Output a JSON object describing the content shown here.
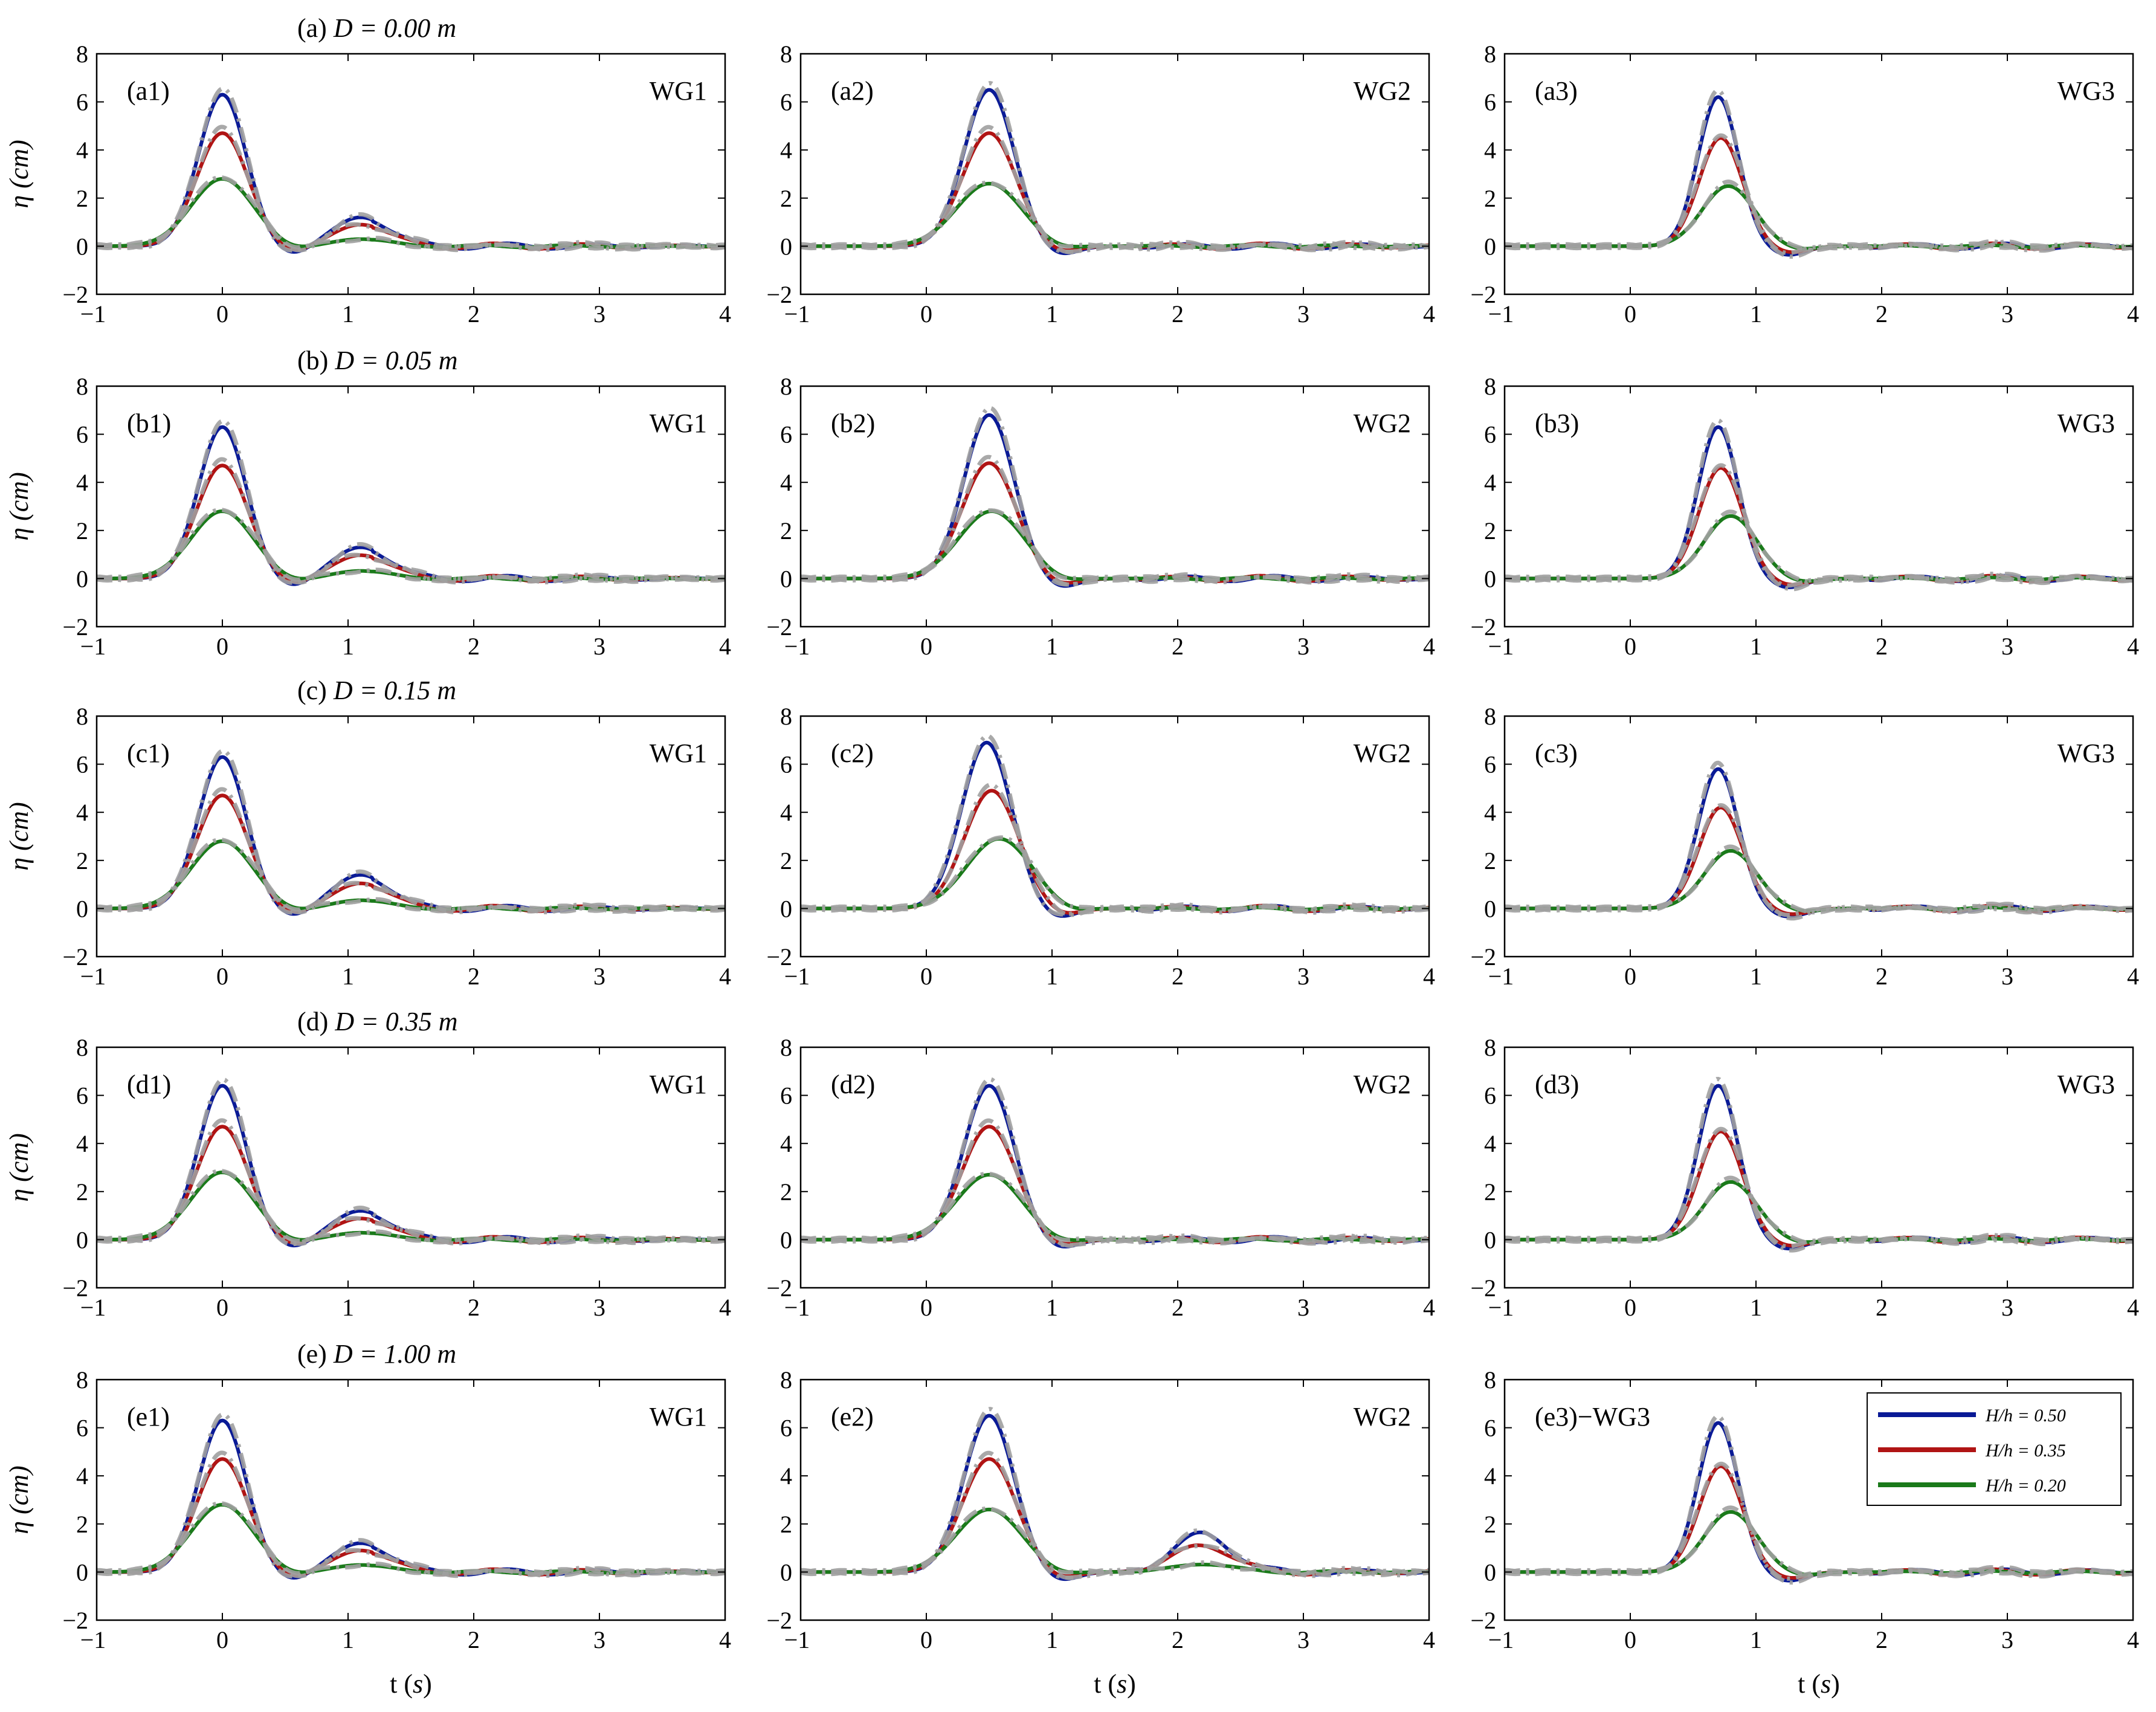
{
  "figure": {
    "gauge_labels": [
      "WG1",
      "WG2",
      "WG3"
    ],
    "xlabel_prefix": "t (",
    "xlabel_unit": "s",
    "xlabel_suffix": ")",
    "ylabel_symbol": "η",
    "ylabel_unit": "(cm)",
    "row_titles": [
      {
        "prefix": "(a)",
        "eq": "D = 0.00",
        "unit": "m"
      },
      {
        "prefix": "(b)",
        "eq": "D = 0.05",
        "unit": "m"
      },
      {
        "prefix": "(c)",
        "eq": "D = 0.15",
        "unit": "m"
      },
      {
        "prefix": "(d)",
        "eq": "D = 0.35",
        "unit": "m"
      },
      {
        "prefix": "(e)",
        "eq": "D = 1.00",
        "unit": "m"
      }
    ],
    "legend": [
      {
        "label": "H/h = 0.50",
        "color": "#0a1a96"
      },
      {
        "label": "H/h = 0.35",
        "color": "#b01414"
      },
      {
        "label": "H/h = 0.20",
        "color": "#1a7a1a"
      }
    ],
    "comparison_color": "#a0a0a0"
  },
  "chart_data": [
    {
      "type": "line",
      "id": "a1",
      "panel_label": "(a1)",
      "gauge": "WG1",
      "xlim": [
        -1,
        4
      ],
      "ylim": [
        -2,
        8
      ],
      "xticks": [
        -1,
        0,
        1,
        2,
        3,
        4
      ],
      "yticks": [
        -2,
        0,
        2,
        4,
        6,
        8
      ],
      "xlabel": "",
      "ylabel": "η (cm)",
      "series": [
        {
          "name": "H/h = 0.50",
          "peak_t": 0.0,
          "peak_eta": 6.3
        },
        {
          "name": "H/h = 0.35",
          "peak_t": 0.0,
          "peak_eta": 4.7
        },
        {
          "name": "H/h = 0.20",
          "peak_t": 0.0,
          "peak_eta": 2.8
        }
      ],
      "secondary_crest": {
        "t": 1.1,
        "eta": 1.2
      }
    },
    {
      "type": "line",
      "id": "a2",
      "panel_label": "(a2)",
      "gauge": "WG2",
      "xlim": [
        -1,
        4
      ],
      "ylim": [
        -2,
        8
      ],
      "xticks": [
        -1,
        0,
        1,
        2,
        3,
        4
      ],
      "yticks": [
        -2,
        0,
        2,
        4,
        6,
        8
      ],
      "series": [
        {
          "name": "H/h = 0.50",
          "peak_t": 0.5,
          "peak_eta": 6.5
        },
        {
          "name": "H/h = 0.35",
          "peak_t": 0.5,
          "peak_eta": 4.7
        },
        {
          "name": "H/h = 0.20",
          "peak_t": 0.5,
          "peak_eta": 2.6
        }
      ]
    },
    {
      "type": "line",
      "id": "a3",
      "panel_label": "(a3)",
      "gauge": "WG3",
      "xlim": [
        -1,
        4
      ],
      "ylim": [
        -2,
        8
      ],
      "xticks": [
        -1,
        0,
        1,
        2,
        3,
        4
      ],
      "yticks": [
        -2,
        0,
        2,
        4,
        6,
        8
      ],
      "series": [
        {
          "name": "H/h = 0.50",
          "peak_t": 0.7,
          "peak_eta": 6.2
        },
        {
          "name": "H/h = 0.35",
          "peak_t": 0.72,
          "peak_eta": 4.5
        },
        {
          "name": "H/h = 0.20",
          "peak_t": 0.78,
          "peak_eta": 2.5
        }
      ]
    },
    {
      "type": "line",
      "id": "b1",
      "panel_label": "(b1)",
      "gauge": "WG1",
      "xlim": [
        -1,
        4
      ],
      "ylim": [
        -2,
        8
      ],
      "xticks": [
        -1,
        0,
        1,
        2,
        3,
        4
      ],
      "yticks": [
        -2,
        0,
        2,
        4,
        6,
        8
      ],
      "ylabel": "η (cm)",
      "series": [
        {
          "name": "H/h = 0.50",
          "peak_t": 0.0,
          "peak_eta": 6.3
        },
        {
          "name": "H/h = 0.35",
          "peak_t": 0.0,
          "peak_eta": 4.7
        },
        {
          "name": "H/h = 0.20",
          "peak_t": 0.0,
          "peak_eta": 2.8
        }
      ],
      "secondary_crest": {
        "t": 1.1,
        "eta": 1.3
      }
    },
    {
      "type": "line",
      "id": "b2",
      "panel_label": "(b2)",
      "gauge": "WG2",
      "xlim": [
        -1,
        4
      ],
      "ylim": [
        -2,
        8
      ],
      "xticks": [
        -1,
        0,
        1,
        2,
        3,
        4
      ],
      "yticks": [
        -2,
        0,
        2,
        4,
        6,
        8
      ],
      "series": [
        {
          "name": "H/h = 0.50",
          "peak_t": 0.5,
          "peak_eta": 6.8
        },
        {
          "name": "H/h = 0.35",
          "peak_t": 0.5,
          "peak_eta": 4.8
        },
        {
          "name": "H/h = 0.20",
          "peak_t": 0.52,
          "peak_eta": 2.8
        }
      ]
    },
    {
      "type": "line",
      "id": "b3",
      "panel_label": "(b3)",
      "gauge": "WG3",
      "xlim": [
        -1,
        4
      ],
      "ylim": [
        -2,
        8
      ],
      "xticks": [
        -1,
        0,
        1,
        2,
        3,
        4
      ],
      "yticks": [
        -2,
        0,
        2,
        4,
        6,
        8
      ],
      "series": [
        {
          "name": "H/h = 0.50",
          "peak_t": 0.7,
          "peak_eta": 6.3
        },
        {
          "name": "H/h = 0.35",
          "peak_t": 0.72,
          "peak_eta": 4.6
        },
        {
          "name": "H/h = 0.20",
          "peak_t": 0.8,
          "peak_eta": 2.6
        }
      ]
    },
    {
      "type": "line",
      "id": "c1",
      "panel_label": "(c1)",
      "gauge": "WG1",
      "xlim": [
        -1,
        4
      ],
      "ylim": [
        -2,
        8
      ],
      "xticks": [
        -1,
        0,
        1,
        2,
        3,
        4
      ],
      "yticks": [
        -2,
        0,
        2,
        4,
        6,
        8
      ],
      "ylabel": "η (cm)",
      "series": [
        {
          "name": "H/h = 0.50",
          "peak_t": 0.0,
          "peak_eta": 6.3
        },
        {
          "name": "H/h = 0.35",
          "peak_t": 0.0,
          "peak_eta": 4.7
        },
        {
          "name": "H/h = 0.20",
          "peak_t": 0.0,
          "peak_eta": 2.8
        }
      ],
      "secondary_crest": {
        "t": 1.1,
        "eta": 1.4
      }
    },
    {
      "type": "line",
      "id": "c2",
      "panel_label": "(c2)",
      "gauge": "WG2",
      "xlim": [
        -1,
        4
      ],
      "ylim": [
        -2,
        8
      ],
      "xticks": [
        -1,
        0,
        1,
        2,
        3,
        4
      ],
      "yticks": [
        -2,
        0,
        2,
        4,
        6,
        8
      ],
      "series": [
        {
          "name": "H/h = 0.50",
          "peak_t": 0.48,
          "peak_eta": 6.9
        },
        {
          "name": "H/h = 0.35",
          "peak_t": 0.52,
          "peak_eta": 4.9
        },
        {
          "name": "H/h = 0.20",
          "peak_t": 0.58,
          "peak_eta": 2.9
        }
      ]
    },
    {
      "type": "line",
      "id": "c3",
      "panel_label": "(c3)",
      "gauge": "WG3",
      "xlim": [
        -1,
        4
      ],
      "ylim": [
        -2,
        8
      ],
      "xticks": [
        -1,
        0,
        1,
        2,
        3,
        4
      ],
      "yticks": [
        -2,
        0,
        2,
        4,
        6,
        8
      ],
      "series": [
        {
          "name": "H/h = 0.50",
          "peak_t": 0.7,
          "peak_eta": 5.8
        },
        {
          "name": "H/h = 0.35",
          "peak_t": 0.72,
          "peak_eta": 4.2
        },
        {
          "name": "H/h = 0.20",
          "peak_t": 0.8,
          "peak_eta": 2.4
        }
      ]
    },
    {
      "type": "line",
      "id": "d1",
      "panel_label": "(d1)",
      "gauge": "WG1",
      "xlim": [
        -1,
        4
      ],
      "ylim": [
        -2,
        8
      ],
      "xticks": [
        -1,
        0,
        1,
        2,
        3,
        4
      ],
      "yticks": [
        -2,
        0,
        2,
        4,
        6,
        8
      ],
      "ylabel": "η (cm)",
      "series": [
        {
          "name": "H/h = 0.50",
          "peak_t": 0.0,
          "peak_eta": 6.4
        },
        {
          "name": "H/h = 0.35",
          "peak_t": 0.0,
          "peak_eta": 4.7
        },
        {
          "name": "H/h = 0.20",
          "peak_t": 0.0,
          "peak_eta": 2.8
        }
      ],
      "secondary_crest": {
        "t": 1.1,
        "eta": 1.2
      }
    },
    {
      "type": "line",
      "id": "d2",
      "panel_label": "(d2)",
      "gauge": "WG2",
      "xlim": [
        -1,
        4
      ],
      "ylim": [
        -2,
        8
      ],
      "xticks": [
        -1,
        0,
        1,
        2,
        3,
        4
      ],
      "yticks": [
        -2,
        0,
        2,
        4,
        6,
        8
      ],
      "series": [
        {
          "name": "H/h = 0.50",
          "peak_t": 0.5,
          "peak_eta": 6.4
        },
        {
          "name": "H/h = 0.35",
          "peak_t": 0.5,
          "peak_eta": 4.7
        },
        {
          "name": "H/h = 0.20",
          "peak_t": 0.5,
          "peak_eta": 2.7
        }
      ]
    },
    {
      "type": "line",
      "id": "d3",
      "panel_label": "(d3)",
      "gauge": "WG3",
      "xlim": [
        -1,
        4
      ],
      "ylim": [
        -2,
        8
      ],
      "xticks": [
        -1,
        0,
        1,
        2,
        3,
        4
      ],
      "yticks": [
        -2,
        0,
        2,
        4,
        6,
        8
      ],
      "series": [
        {
          "name": "H/h = 0.50",
          "peak_t": 0.7,
          "peak_eta": 6.4
        },
        {
          "name": "H/h = 0.35",
          "peak_t": 0.72,
          "peak_eta": 4.5
        },
        {
          "name": "H/h = 0.20",
          "peak_t": 0.8,
          "peak_eta": 2.4
        }
      ]
    },
    {
      "type": "line",
      "id": "e1",
      "panel_label": "(e1)",
      "gauge": "WG1",
      "xlim": [
        -1,
        4
      ],
      "ylim": [
        -2,
        8
      ],
      "xticks": [
        -1,
        0,
        1,
        2,
        3,
        4
      ],
      "yticks": [
        -2,
        0,
        2,
        4,
        6,
        8
      ],
      "xlabel": "t (s)",
      "ylabel": "η (cm)",
      "series": [
        {
          "name": "H/h = 0.50",
          "peak_t": 0.0,
          "peak_eta": 6.3
        },
        {
          "name": "H/h = 0.35",
          "peak_t": 0.0,
          "peak_eta": 4.7
        },
        {
          "name": "H/h = 0.20",
          "peak_t": 0.0,
          "peak_eta": 2.8
        }
      ],
      "secondary_crest": {
        "t": 1.1,
        "eta": 1.2
      }
    },
    {
      "type": "line",
      "id": "e2",
      "panel_label": "(e2)",
      "gauge": "WG2",
      "xlim": [
        -1,
        4
      ],
      "ylim": [
        -2,
        8
      ],
      "xticks": [
        -1,
        0,
        1,
        2,
        3,
        4
      ],
      "yticks": [
        -2,
        0,
        2,
        4,
        6,
        8
      ],
      "xlabel": "t (s)",
      "series": [
        {
          "name": "H/h = 0.50",
          "peak_t": 0.5,
          "peak_eta": 6.5
        },
        {
          "name": "H/h = 0.35",
          "peak_t": 0.5,
          "peak_eta": 4.7
        },
        {
          "name": "H/h = 0.20",
          "peak_t": 0.5,
          "peak_eta": 2.6
        }
      ],
      "secondary_crest": {
        "t": 2.2,
        "eta": 1.6
      }
    },
    {
      "type": "line",
      "id": "e3",
      "panel_label": "(e3)−WG3",
      "gauge": "",
      "xlim": [
        -1,
        4
      ],
      "ylim": [
        -2,
        8
      ],
      "xticks": [
        -1,
        0,
        1,
        2,
        3,
        4
      ],
      "yticks": [
        -2,
        0,
        2,
        4,
        6,
        8
      ],
      "xlabel": "t (s)",
      "series": [
        {
          "name": "H/h = 0.50",
          "peak_t": 0.7,
          "peak_eta": 6.2
        },
        {
          "name": "H/h = 0.35",
          "peak_t": 0.72,
          "peak_eta": 4.4
        },
        {
          "name": "H/h = 0.20",
          "peak_t": 0.8,
          "peak_eta": 2.5
        }
      ],
      "has_legend": true
    }
  ]
}
